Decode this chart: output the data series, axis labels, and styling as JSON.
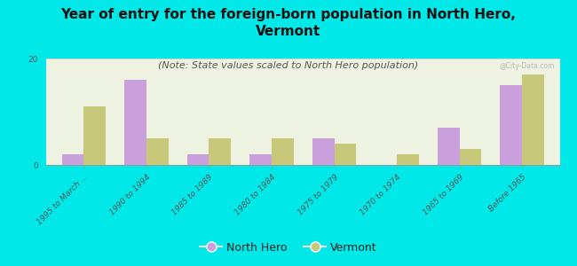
{
  "title": "Year of entry for the foreign-born population in North Hero,\nVermont",
  "subtitle": "(Note: State values scaled to North Hero population)",
  "categories": [
    "1995 to March ...",
    "1990 to 1994",
    "1985 to 1989",
    "1980 to 1984",
    "1975 to 1979",
    "1970 to 1974",
    "1965 to 1969",
    "Before 1965"
  ],
  "north_hero_values": [
    2,
    16,
    2,
    2,
    5,
    0,
    7,
    15
  ],
  "vermont_values": [
    11,
    5,
    5,
    5,
    4,
    2,
    3,
    17
  ],
  "north_hero_color": "#c9a0dc",
  "vermont_color": "#c8c87a",
  "background_color": "#00e8e8",
  "plot_bg_color": "#eef2e0",
  "ylim": [
    0,
    20
  ],
  "yticks": [
    0,
    20
  ],
  "bar_width": 0.35,
  "title_fontsize": 11,
  "subtitle_fontsize": 8,
  "tick_fontsize": 6.5,
  "legend_fontsize": 9,
  "watermark": "@City-Data.com"
}
